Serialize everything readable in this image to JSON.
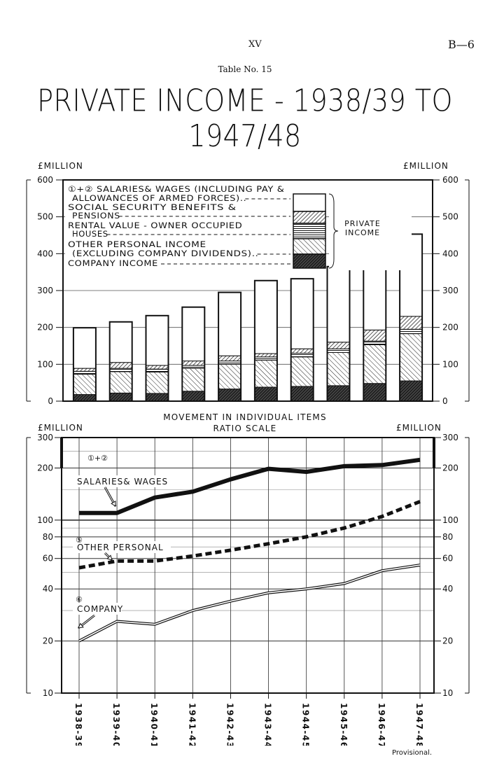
{
  "header": {
    "page_roman": "XV",
    "page_ref": "B—6",
    "table_no": "Table No. 15",
    "title": "PRIVATE INCOME - 1938/39 TO 1947/48"
  },
  "footnote": "Provisional.",
  "chart_data": [
    {
      "type": "bar",
      "stacked": true,
      "ylabel_left": "£MILLION",
      "ylabel_right": "£MILLION",
      "ylim": [
        0,
        600
      ],
      "yticks": [
        0,
        100,
        200,
        300,
        400,
        500,
        600
      ],
      "grid": true,
      "categories": [
        "1938-39",
        "1939-40",
        "1940-41",
        "1941-42",
        "1942-43",
        "1943-44",
        "1944-45",
        "1945-46",
        "1946-47",
        "1947-48"
      ],
      "series": [
        {
          "key": "company",
          "values": [
            18,
            22,
            21,
            27,
            33,
            38,
            40,
            42,
            48,
            55
          ]
        },
        {
          "key": "other_personal",
          "values": [
            55,
            58,
            58,
            62,
            67,
            73,
            80,
            90,
            105,
            128
          ]
        },
        {
          "key": "rental",
          "values": [
            8,
            9,
            8,
            8,
            9,
            9,
            10,
            10,
            10,
            12
          ]
        },
        {
          "key": "social_security",
          "values": [
            8,
            16,
            10,
            12,
            14,
            9,
            12,
            18,
            30,
            35
          ]
        },
        {
          "key": "salaries_wages",
          "values": [
            110,
            110,
            135,
            146,
            172,
            198,
            190,
            205,
            208,
            223
          ]
        }
      ],
      "totals": [
        199,
        215,
        232,
        255,
        295,
        327,
        332,
        365,
        401,
        453
      ],
      "legend": {
        "items": [
          {
            "key": "salaries_wages",
            "lines": [
              "①+② SALARIES& WAGES (INCLUDING PAY &",
              "ALLOWANCES OF ARMED FORCES).."
            ]
          },
          {
            "key": "social_security",
            "lines": [
              "SOCIAL  SECURITY  BENEFITS &",
              "PENSIONS"
            ]
          },
          {
            "key": "rental",
            "lines": [
              "RENTAL VALUE - OWNER OCCUPIED",
              "HOUSES"
            ]
          },
          {
            "key": "other_personal",
            "lines": [
              "OTHER  PERSONAL  INCOME",
              "(EXCLUDING COMPANY DIVIDENDS).."
            ]
          },
          {
            "key": "company",
            "lines": [
              "COMPANY  INCOME"
            ]
          }
        ],
        "bracket_label": [
          "PRIVATE",
          "INCOME"
        ],
        "placement": "top-left"
      }
    },
    {
      "type": "line",
      "yscale": "log",
      "title": "MOVEMENT  IN  INDIVIDUAL ITEMS",
      "subtitle": "RATIO  SCALE",
      "ylabel_left": "£MILLION",
      "ylabel_right": "£MILLION",
      "ylim": [
        10,
        300
      ],
      "yticks": [
        10,
        20,
        40,
        60,
        80,
        100,
        200,
        300
      ],
      "grid": true,
      "x": [
        "1938-39",
        "1939-40",
        "1940-41",
        "1941-42",
        "1942-43",
        "1943-44",
        "1944-45",
        "1945-46",
        "1946-47",
        "1947-48"
      ],
      "series": [
        {
          "key": "salaries_wages",
          "name": "SALARIES& WAGES",
          "label_prefix": "①+②",
          "values": [
            110,
            110,
            135,
            146,
            172,
            198,
            190,
            205,
            208,
            223
          ]
        },
        {
          "key": "other_personal",
          "name": "OTHER  PERSONAL",
          "label_prefix": "⑤",
          "values": [
            53,
            58,
            58,
            62,
            67,
            73,
            80,
            90,
            105,
            128
          ]
        },
        {
          "key": "company",
          "name": "COMPANY",
          "label_prefix": "⑥",
          "values": [
            20,
            26,
            25,
            30,
            34,
            38,
            40,
            43,
            51,
            55
          ]
        }
      ]
    }
  ]
}
